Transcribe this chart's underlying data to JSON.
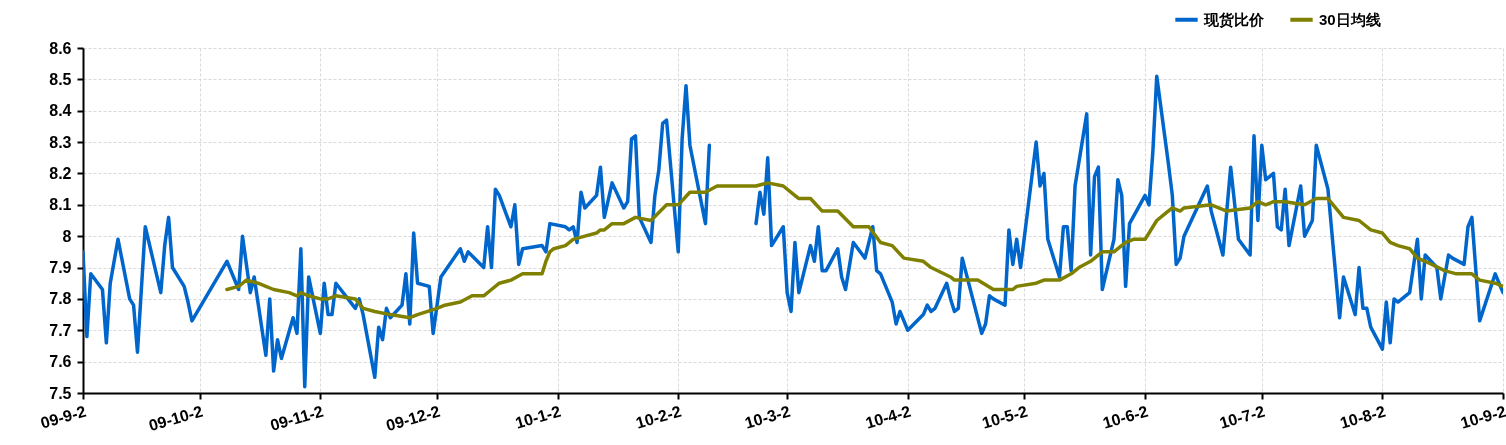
{
  "chart_data": {
    "type": "line",
    "xlim": [
      "2009-09-02",
      "2010-09-02"
    ],
    "xticks": [
      {
        "value": "2009-09-02",
        "label": "09-9-2"
      },
      {
        "value": "2009-10-02",
        "label": "09-10-2"
      },
      {
        "value": "2009-11-02",
        "label": "09-11-2"
      },
      {
        "value": "2009-12-02",
        "label": "09-12-2"
      },
      {
        "value": "2010-01-02",
        "label": "10-1-2"
      },
      {
        "value": "2010-02-02",
        "label": "10-2-2"
      },
      {
        "value": "2010-03-02",
        "label": "10-3-2"
      },
      {
        "value": "2010-04-02",
        "label": "10-4-2"
      },
      {
        "value": "2010-05-02",
        "label": "10-5-2"
      },
      {
        "value": "2010-06-02",
        "label": "10-6-2"
      },
      {
        "value": "2010-07-02",
        "label": "10-7-2"
      },
      {
        "value": "2010-08-02",
        "label": "10-8-2"
      },
      {
        "value": "2010-09-02",
        "label": "10-9-2"
      }
    ],
    "ylim": [
      7.5,
      8.6
    ],
    "yticks": [
      7.5,
      7.6,
      7.7,
      7.8,
      7.9,
      8,
      8.1,
      8.2,
      8.3,
      8.4,
      8.5,
      8.6
    ],
    "grid": true,
    "legend": "top right",
    "marker": "none",
    "line_style": "solid",
    "series": [
      {
        "name": "现货比价",
        "color": "#0066cc",
        "x": [
          "2009-09-02",
          "2009-09-03",
          "2009-09-04",
          "2009-09-07",
          "2009-09-08",
          "2009-09-09",
          "2009-09-11",
          "2009-09-14",
          "2009-09-15",
          "2009-09-16",
          "2009-09-18",
          "2009-09-22",
          "2009-09-23",
          "2009-09-24",
          "2009-09-25",
          "2009-09-28",
          "2009-09-29",
          "2009-09-30",
          "2009-10-09",
          "2009-10-12",
          "2009-10-13",
          "2009-10-15",
          "2009-10-16",
          "2009-10-19",
          "2009-10-20",
          "2009-10-21",
          "2009-10-22",
          "2009-10-23",
          "2009-10-26",
          "2009-10-27",
          "2009-10-28",
          "2009-10-29",
          "2009-10-30",
          "2009-11-02",
          "2009-11-03",
          "2009-11-04",
          "2009-11-05",
          "2009-11-06",
          "2009-11-11",
          "2009-11-12",
          "2009-11-13",
          "2009-11-16",
          "2009-11-17",
          "2009-11-18",
          "2009-11-19",
          "2009-11-20",
          "2009-11-23",
          "2009-11-24",
          "2009-11-25",
          "2009-11-26",
          "2009-11-27",
          "2009-11-30",
          "2009-12-01",
          "2009-12-03",
          "2009-12-08",
          "2009-12-09",
          "2009-12-10",
          "2009-12-14",
          "2009-12-15",
          "2009-12-16",
          "2009-12-17",
          "2009-12-18",
          "2009-12-21",
          "2009-12-22",
          "2009-12-23",
          "2009-12-24",
          "2009-12-29",
          "2009-12-30",
          "2009-12-31",
          "2010-01-04",
          "2010-01-05",
          "2010-01-06",
          "2010-01-07",
          "2010-01-08",
          "2010-01-09",
          "2010-01-12",
          "2010-01-13",
          "2010-01-14",
          "2010-01-16",
          "2010-01-19",
          "2010-01-20",
          "2010-01-21",
          "2010-01-22",
          "2010-01-23",
          "2010-01-26",
          "2010-01-27",
          "2010-01-28",
          "2010-01-29",
          "2010-01-30",
          "2010-02-02",
          "2010-02-03",
          "2010-02-04",
          "2010-02-05",
          "2010-02-09",
          "2010-02-10",
          "2010-02-16",
          "2010-02-22",
          "2010-02-23",
          "2010-02-24",
          "2010-02-25",
          "2010-02-26",
          "2010-03-01",
          "2010-03-02",
          "2010-03-03",
          "2010-03-04",
          "2010-03-05",
          "2010-03-08",
          "2010-03-09",
          "2010-03-10",
          "2010-03-11",
          "2010-03-12",
          "2010-03-15",
          "2010-03-16",
          "2010-03-17",
          "2010-03-19",
          "2010-03-22",
          "2010-03-24",
          "2010-03-25",
          "2010-03-26",
          "2010-03-29",
          "2010-03-30",
          "2010-03-31",
          "2010-04-02",
          "2010-04-06",
          "2010-04-07",
          "2010-04-08",
          "2010-04-09",
          "2010-04-12",
          "2010-04-13",
          "2010-04-14",
          "2010-04-15",
          "2010-04-16",
          "2010-04-21",
          "2010-04-22",
          "2010-04-23",
          "2010-04-24",
          "2010-04-27",
          "2010-04-28",
          "2010-04-29",
          "2010-04-30",
          "2010-05-01",
          "2010-05-05",
          "2010-05-06",
          "2010-05-07",
          "2010-05-08",
          "2010-05-11",
          "2010-05-12",
          "2010-05-13",
          "2010-05-14",
          "2010-05-15",
          "2010-05-18",
          "2010-05-19",
          "2010-05-20",
          "2010-05-21",
          "2010-05-22",
          "2010-05-25",
          "2010-05-26",
          "2010-05-27",
          "2010-05-28",
          "2010-05-29",
          "2010-06-02",
          "2010-06-03",
          "2010-06-04",
          "2010-06-05",
          "2010-06-08",
          "2010-06-09",
          "2010-06-10",
          "2010-06-11",
          "2010-06-12",
          "2010-06-18",
          "2010-06-19",
          "2010-06-22",
          "2010-06-24",
          "2010-06-26",
          "2010-06-29",
          "2010-06-30",
          "2010-07-01",
          "2010-07-02",
          "2010-07-03",
          "2010-07-05",
          "2010-07-06",
          "2010-07-07",
          "2010-07-08",
          "2010-07-09",
          "2010-07-12",
          "2010-07-13",
          "2010-07-15",
          "2010-07-16",
          "2010-07-19",
          "2010-07-22",
          "2010-07-23",
          "2010-07-26",
          "2010-07-27",
          "2010-07-28",
          "2010-07-29",
          "2010-07-30",
          "2010-08-02",
          "2010-08-03",
          "2010-08-04",
          "2010-08-05",
          "2010-08-06",
          "2010-08-09",
          "2010-08-11",
          "2010-08-12",
          "2010-08-13",
          "2010-08-16",
          "2010-08-17",
          "2010-08-19",
          "2010-08-20",
          "2010-08-23",
          "2010-08-24",
          "2010-08-25",
          "2010-08-27",
          "2010-08-31",
          "2010-09-02"
        ],
        "values": [
          7.95,
          7.68,
          7.88,
          7.83,
          7.66,
          7.85,
          7.99,
          7.8,
          7.78,
          7.63,
          8.03,
          7.82,
          7.97,
          8.06,
          7.9,
          7.84,
          7.79,
          7.73,
          7.92,
          7.83,
          8.0,
          7.82,
          7.87,
          7.62,
          7.8,
          7.57,
          7.67,
          7.61,
          7.74,
          7.69,
          7.96,
          7.52,
          7.87,
          7.69,
          7.85,
          7.75,
          7.75,
          7.85,
          7.77,
          7.8,
          7.75,
          7.55,
          7.71,
          7.67,
          7.77,
          7.74,
          7.78,
          7.88,
          7.72,
          8.01,
          7.85,
          7.84,
          7.69,
          7.87,
          7.96,
          7.92,
          7.95,
          7.9,
          8.03,
          7.9,
          8.15,
          8.13,
          8.03,
          8.1,
          7.91,
          7.96,
          7.97,
          7.95,
          8.04,
          8.03,
          8.02,
          8.03,
          7.98,
          8.14,
          8.09,
          8.13,
          8.22,
          8.06,
          8.17,
          8.09,
          8.11,
          8.31,
          8.32,
          8.06,
          7.98,
          8.13,
          8.21,
          8.36,
          8.37,
          7.95,
          8.31,
          8.48,
          8.29,
          8.04,
          8.29,
          null,
          8.04,
          8.14,
          8.07,
          8.25,
          7.97,
          8.03,
          7.82,
          7.76,
          7.98,
          7.82,
          7.97,
          7.92,
          8.03,
          7.89,
          7.89,
          7.96,
          7.87,
          7.83,
          7.98,
          7.93,
          8.03,
          7.89,
          7.88,
          7.79,
          7.72,
          7.76,
          7.7,
          7.75,
          7.78,
          7.76,
          7.77,
          7.85,
          7.8,
          7.76,
          7.77,
          7.93,
          7.69,
          7.72,
          7.81,
          7.8,
          7.78,
          8.02,
          7.91,
          7.99,
          7.9,
          8.3,
          8.16,
          8.2,
          7.99,
          7.87,
          8.03,
          8.03,
          7.89,
          8.16,
          8.39,
          7.94,
          8.19,
          8.22,
          7.83,
          7.99,
          8.18,
          8.13,
          7.84,
          8.04,
          8.13,
          8.1,
          8.27,
          8.51,
          8.23,
          8.13,
          7.91,
          7.93,
          8.0,
          8.16,
          8.08,
          7.94,
          8.22,
          7.99,
          7.94,
          8.32,
          8.05,
          8.29,
          8.18,
          8.2,
          8.03,
          8.02,
          8.15,
          7.97,
          8.16,
          8.0,
          8.05,
          8.29,
          8.15,
          7.74,
          7.87,
          7.75,
          7.9,
          7.77,
          7.77,
          7.71,
          7.64,
          7.79,
          7.66,
          7.8,
          7.79,
          7.82,
          7.99,
          7.8,
          7.94,
          7.9,
          7.8,
          7.94,
          7.93,
          7.91,
          8.03,
          8.06,
          7.73,
          7.88,
          7.82
        ]
      },
      {
        "name": "30日均线",
        "color": "#808000",
        "x": [
          "2009-10-09",
          "2009-10-12",
          "2009-10-14",
          "2009-10-17",
          "2009-10-19",
          "2009-10-21",
          "2009-10-25",
          "2009-10-27",
          "2009-10-28",
          "2009-10-30",
          "2009-11-02",
          "2009-11-04",
          "2009-11-06",
          "2009-11-11",
          "2009-11-13",
          "2009-11-16",
          "2009-11-20",
          "2009-11-25",
          "2009-11-27",
          "2009-12-02",
          "2009-12-04",
          "2009-12-08",
          "2009-12-11",
          "2009-12-14",
          "2009-12-16",
          "2009-12-18",
          "2009-12-21",
          "2009-12-24",
          "2009-12-29",
          "2009-12-30",
          "2009-12-31",
          "2010-01-01",
          "2010-01-04",
          "2010-01-06",
          "2010-01-09",
          "2010-01-12",
          "2010-01-13",
          "2010-01-14",
          "2010-01-16",
          "2010-01-19",
          "2010-01-22",
          "2010-01-26",
          "2010-01-30",
          "2010-02-02",
          "2010-02-05",
          "2010-02-09",
          "2010-02-12",
          "2010-02-22",
          "2010-02-25",
          "2010-03-01",
          "2010-03-03",
          "2010-03-05",
          "2010-03-08",
          "2010-03-11",
          "2010-03-15",
          "2010-03-19",
          "2010-03-23",
          "2010-03-26",
          "2010-03-29",
          "2010-04-01",
          "2010-04-06",
          "2010-04-08",
          "2010-04-13",
          "2010-04-14",
          "2010-04-20",
          "2010-04-24",
          "2010-04-29",
          "2010-04-30",
          "2010-05-05",
          "2010-05-07",
          "2010-05-11",
          "2010-05-14",
          "2010-05-16",
          "2010-05-19",
          "2010-05-22",
          "2010-05-25",
          "2010-05-28",
          "2010-05-30",
          "2010-06-02",
          "2010-06-05",
          "2010-06-07",
          "2010-06-09",
          "2010-06-11",
          "2010-06-12",
          "2010-06-19",
          "2010-06-23",
          "2010-06-29",
          "2010-07-01",
          "2010-07-03",
          "2010-07-05",
          "2010-07-08",
          "2010-07-13",
          "2010-07-16",
          "2010-07-19",
          "2010-07-23",
          "2010-07-27",
          "2010-07-30",
          "2010-08-02",
          "2010-08-04",
          "2010-08-06",
          "2010-08-09",
          "2010-08-11",
          "2010-08-13",
          "2010-08-18",
          "2010-08-21",
          "2010-08-25",
          "2010-08-27",
          "2010-08-31",
          "2010-09-02"
        ],
        "values": [
          7.83,
          7.84,
          7.86,
          7.85,
          7.84,
          7.83,
          7.82,
          7.81,
          7.82,
          7.81,
          7.8,
          7.8,
          7.81,
          7.8,
          7.77,
          7.76,
          7.75,
          7.74,
          7.75,
          7.77,
          7.78,
          7.79,
          7.81,
          7.81,
          7.83,
          7.85,
          7.86,
          7.88,
          7.88,
          7.92,
          7.95,
          7.96,
          7.97,
          7.99,
          8.0,
          8.01,
          8.02,
          8.02,
          8.04,
          8.04,
          8.06,
          8.05,
          8.1,
          8.1,
          8.14,
          8.14,
          8.16,
          8.16,
          8.17,
          8.16,
          8.14,
          8.12,
          8.12,
          8.08,
          8.08,
          8.03,
          8.03,
          7.98,
          7.97,
          7.93,
          7.92,
          7.9,
          7.87,
          7.86,
          7.86,
          7.83,
          7.83,
          7.84,
          7.85,
          7.86,
          7.86,
          7.88,
          7.9,
          7.92,
          7.95,
          7.95,
          7.98,
          7.99,
          7.99,
          8.05,
          8.07,
          8.09,
          8.08,
          8.09,
          8.1,
          8.08,
          8.09,
          8.11,
          8.1,
          8.11,
          8.11,
          8.1,
          8.12,
          8.12,
          8.06,
          8.05,
          8.02,
          8.01,
          7.98,
          7.97,
          7.96,
          7.93,
          7.92,
          7.89,
          7.88,
          7.88,
          7.86,
          7.85,
          7.84
        ]
      }
    ]
  }
}
